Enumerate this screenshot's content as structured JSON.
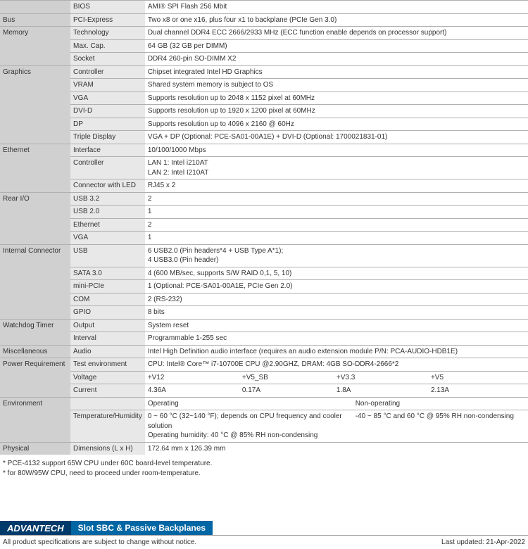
{
  "rows": [
    {
      "cat": "",
      "sub": "BIOS",
      "val": "AMI® SPI Flash 256 Mbit"
    },
    {
      "cat": "Bus",
      "sub": "PCI-Express",
      "val": "Two x8 or one x16, plus four x1 to backplane (PCIe Gen 3.0)"
    },
    {
      "cat": "Memory",
      "catRowspan": 3,
      "sub": "Technology",
      "val": "Dual channel DDR4 ECC 2666/2933 MHz (ECC function enable depends on processor support)"
    },
    {
      "sub": "Max. Cap.",
      "val": "64 GB (32 GB per DIMM)"
    },
    {
      "sub": "Socket",
      "val": "DDR4 260-pin SO-DIMM X2"
    },
    {
      "cat": "Graphics",
      "catRowspan": 6,
      "sub": "Controller",
      "val": "Chipset integrated Intel HD Graphics"
    },
    {
      "sub": "VRAM",
      "val": "Shared system memory is subject to OS"
    },
    {
      "sub": "VGA",
      "val": "Supports resolution up to 2048 x 1152  pixel at 60MHz"
    },
    {
      "sub": "DVI-D",
      "val": "Supports resolution up to 1920 x 1200 pixel at 60MHz"
    },
    {
      "sub": "DP",
      "val": "Supports resolution up to 4096 x 2160  @ 60Hz"
    },
    {
      "sub": "Triple Display",
      "val": "VGA + DP (Optional: PCE-SA01-00A1E) + DVI-D (Optional: 1700021831-01)"
    },
    {
      "cat": "Ethernet",
      "catRowspan": 3,
      "sub": "Interface",
      "val": "10/100/1000 Mbps"
    },
    {
      "sub": "Controller",
      "val": "LAN 1: Intel i210AT\nLAN 2: Intel I210AT"
    },
    {
      "sub": "Connector with LED",
      "val": "RJ45 x 2"
    },
    {
      "cat": "Rear I/O",
      "catRowspan": 4,
      "sub": "USB 3.2",
      "val": "2"
    },
    {
      "sub": "USB 2.0",
      "val": "1"
    },
    {
      "sub": "Ethernet",
      "val": "2"
    },
    {
      "sub": "VGA",
      "val": "1"
    },
    {
      "cat": "Internal Connector",
      "catRowspan": 5,
      "sub": "USB",
      "val": "6 USB2.0 (Pin headers*4 + USB Type A*1);\n4 USB3.0 (Pin header)"
    },
    {
      "sub": "SATA 3.0",
      "val": "4 (600 MB/sec, supports S/W RAID 0,1, 5, 10)"
    },
    {
      "sub": "mini-PCIe",
      "val": "1 (Optional: PCE-SA01-00A1E, PCIe Gen 2.0)"
    },
    {
      "sub": "COM",
      "val": "2 (RS-232)"
    },
    {
      "sub": "GPIO",
      "val": "8 bits"
    },
    {
      "cat": "Watchdog Timer",
      "catRowspan": 2,
      "sub": "Output",
      "val": "System reset"
    },
    {
      "sub": "Interval",
      "val": "Programmable 1-255 sec"
    },
    {
      "cat": "Miscellaneous",
      "sub": "Audio",
      "val": "Intel High Definition audio interface (requires an audio extension module P/N: PCA-AUDIO-HDB1E)"
    }
  ],
  "power": {
    "cat": "Power Requirement",
    "testEnvLabel": "Test environment",
    "testEnv": "CPU: Intel® Core™ i7-10700E CPU @2.90GHZ, DRAM: 4GB SO-DDR4-2666*2",
    "voltageLabel": "Voltage",
    "voltages": [
      "+V12",
      "+V5_SB",
      "+V3.3",
      "+V5"
    ],
    "currentLabel": "Current",
    "currents": [
      "4.36A",
      "0.17A",
      "1.8A",
      "2.13A"
    ]
  },
  "env": {
    "cat": "Environment",
    "opHeader": "Operating",
    "nonOpHeader": "Non-operating",
    "thLabel": "Temperature/Humidity",
    "opVal": "0 ~ 60 °C (32~140 °F); depends on CPU frequency and cooler solution\nOperating humidity: 40 °C @ 85% RH non-condensing",
    "nonOpVal": "-40 ~ 85 °C and 60 °C @ 95% RH non-condensing"
  },
  "physical": {
    "cat": "Physical",
    "sub": "Dimensions (L x H)",
    "val": "172.64 mm x 126.39 mm"
  },
  "footnotes": [
    "* PCE-4132 support 65W CPU under 60C board-level temperature.",
    "* for 80W/95W CPU, need to proceed under room-temperature."
  ],
  "footer": {
    "logo": "ADVANTECH",
    "category": "Slot SBC & Passive Backplanes",
    "disclaimer": "All product specifications are subject to change without notice.",
    "updated": "Last updated: 21-Apr-2022"
  }
}
